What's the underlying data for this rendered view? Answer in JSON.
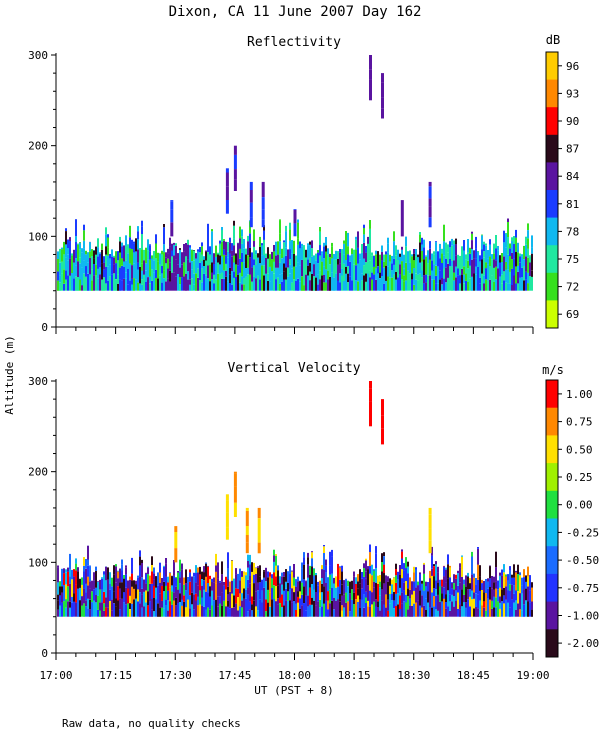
{
  "figure": {
    "title": "Dixon, CA 11 June 2007  Day 162",
    "ylabel": "Altitude (m)",
    "xlabel": "UT  (PST + 8)",
    "footnote": "Raw data, no quality checks",
    "x_ticks": [
      "17:00",
      "17:15",
      "17:30",
      "17:45",
      "18:00",
      "18:15",
      "18:30",
      "18:45",
      "19:00"
    ],
    "x_range_hours": [
      17.0,
      19.0
    ],
    "y_ticks": [
      "0",
      "100",
      "200",
      "300"
    ],
    "y_range_m": [
      0,
      300
    ]
  },
  "chart_data": [
    {
      "type": "heatmap",
      "title": "Reflectivity",
      "colorbar_unit": "dB",
      "colorbar_labels": [
        "96",
        "93",
        "90",
        "87",
        "84",
        "81",
        "78",
        "75",
        "72",
        "69"
      ],
      "colorbar_colors": [
        "#ffcc00",
        "#ff8800",
        "#ff0000",
        "#2a0a1a",
        "#5a14a0",
        "#1a3cff",
        "#10b8f0",
        "#20e8a0",
        "#36e01e",
        "#ccff00"
      ],
      "ylim": [
        0,
        300
      ],
      "xlim": [
        "17:00",
        "19:00"
      ],
      "clutter_layer_m": [
        40,
        100
      ],
      "peak_echoes": [
        {
          "time": "17:29",
          "top_m": 140
        },
        {
          "time": "17:43",
          "top_m": 175
        },
        {
          "time": "17:45",
          "top_m": 200
        },
        {
          "time": "17:49",
          "top_m": 160
        },
        {
          "time": "17:52",
          "top_m": 160
        },
        {
          "time": "18:00",
          "top_m": 130
        },
        {
          "time": "18:19",
          "top_m": 300
        },
        {
          "time": "18:22",
          "top_m": 280
        },
        {
          "time": "18:27",
          "top_m": 140
        },
        {
          "time": "18:34",
          "top_m": 160
        }
      ]
    },
    {
      "type": "heatmap",
      "title": "Vertical Velocity",
      "colorbar_unit": "m/s",
      "colorbar_labels": [
        "1.00",
        "0.75",
        "0.50",
        "0.25",
        "0.00",
        "-0.25",
        "-0.50",
        "-0.75",
        "-1.00",
        "-2.00"
      ],
      "colorbar_colors": [
        "#ff0000",
        "#ff8800",
        "#ffe000",
        "#a0f000",
        "#20e040",
        "#10b8f0",
        "#1a6cff",
        "#2233ff",
        "#5a14a0",
        "#2a0a1a"
      ],
      "ylim": [
        0,
        300
      ],
      "xlim": [
        "17:00",
        "19:00"
      ],
      "clutter_layer_m": [
        40,
        100
      ],
      "peak_echoes": [
        {
          "time": "17:30",
          "top_m": 140
        },
        {
          "time": "17:43",
          "top_m": 175
        },
        {
          "time": "17:45",
          "top_m": 200
        },
        {
          "time": "17:48",
          "top_m": 160
        },
        {
          "time": "17:51",
          "top_m": 160
        },
        {
          "time": "18:19",
          "top_m": 300
        },
        {
          "time": "18:22",
          "top_m": 280
        },
        {
          "time": "18:34",
          "top_m": 160
        }
      ]
    }
  ]
}
